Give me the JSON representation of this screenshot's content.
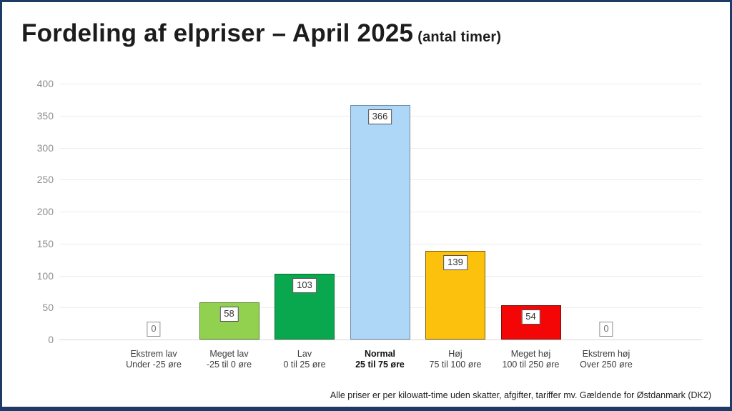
{
  "header": {
    "title": "Fordeling af elpriser – April 2025",
    "subtitle": "(antal timer)"
  },
  "footer": {
    "note": "Alle priser er per kilowatt-time uden skatter, afgifter, tariffer mv. Gældende for Østdanmark (DK2)"
  },
  "colors": {
    "page_border": "#1e3a66",
    "grid_line": "#ececec",
    "baseline": "#d6d6d6",
    "tick_label": "#8f8f8f"
  },
  "chart_data": {
    "type": "bar",
    "title": "Fordeling af elpriser – April 2025 (antal timer)",
    "categories": [
      {
        "label": "Ekstrem lav",
        "range": "Under -25 øre",
        "bold": false
      },
      {
        "label": "Meget lav",
        "range": "-25 til 0 øre",
        "bold": false
      },
      {
        "label": "Lav",
        "range": "0 til 25 øre",
        "bold": false
      },
      {
        "label": "Normal",
        "range": "25 til 75 øre",
        "bold": true
      },
      {
        "label": "Høj",
        "range": "75 til 100 øre",
        "bold": false
      },
      {
        "label": "Meget høj",
        "range": "100 til 250 øre",
        "bold": false
      },
      {
        "label": "Ekstrem høj",
        "range": "Over 250 øre",
        "bold": false
      }
    ],
    "values": [
      0,
      58,
      103,
      366,
      139,
      54,
      0
    ],
    "bar_fill": [
      "none",
      "#92d050",
      "#09a84e",
      "#aed6f7",
      "#fcc10d",
      "#f50606",
      "none"
    ],
    "bar_border": [
      "none",
      "#538221",
      "#0a6b2d",
      "#6e8ca6",
      "#7f6000",
      "#7e0d05",
      "none"
    ],
    "ylim": [
      0,
      400
    ],
    "ytick_step": 50,
    "grid": true,
    "legend": false,
    "xlabel": "",
    "ylabel": ""
  }
}
